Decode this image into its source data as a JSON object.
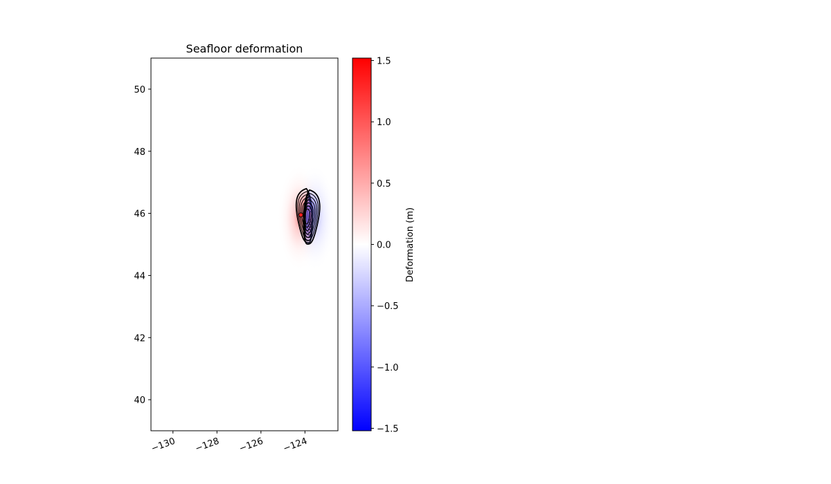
{
  "chart_data": {
    "type": "heatmap",
    "title": "Seafloor deformation",
    "xlabel": "",
    "ylabel": "",
    "xlim": [
      -131,
      -122.5
    ],
    "ylim": [
      39,
      51
    ],
    "xticks": [
      -130,
      -128,
      -126,
      -124
    ],
    "xtick_labels": [
      "−130",
      "−128",
      "−126",
      "−124"
    ],
    "yticks": [
      40,
      42,
      44,
      46,
      48,
      50
    ],
    "ytick_labels": [
      "40",
      "42",
      "44",
      "46",
      "48",
      "50"
    ],
    "grid": false,
    "colorbar": {
      "label": "Deformation (m)",
      "vmin": -1.52,
      "vmax": 1.52,
      "ticks": [
        -1.5,
        -1.0,
        -0.5,
        0.0,
        0.5,
        1.0,
        1.5
      ],
      "tick_labels": [
        "−1.5",
        "−1.0",
        "−0.5",
        "0.0",
        "0.5",
        "1.0",
        "1.5"
      ],
      "colormap": [
        "#0000ff",
        "#ffffff",
        "#ff0000"
      ]
    },
    "uplift_lobe": {
      "center_lon": -124.25,
      "center_lat": 45.95,
      "peak_value": 1.5
    },
    "subsidence_lobe": {
      "center_lon": -123.6,
      "center_lat": 45.95,
      "peak_value": -0.4
    },
    "contour_color": "#000000"
  }
}
